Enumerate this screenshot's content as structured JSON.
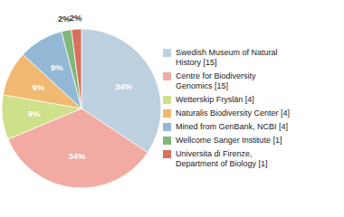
{
  "chart_data": {
    "type": "pie",
    "categories": [
      "Swedish Museum of Natural\nHistory [15]",
      "Centre for Biodiversity\nGenomics [15]",
      "Wetterskip Fryslän [4]",
      "Naturalis Biodiversity Center [4]",
      "Mined from GenBank, NCBI [4]",
      "Wellcome Sanger Institute [1]",
      "Universita di Firenze,\nDepartment of Biology [1]"
    ],
    "values": [
      34,
      34,
      9,
      9,
      9,
      2,
      2
    ],
    "value_labels": [
      "34%",
      "34%",
      "9%",
      "9%",
      "9%",
      "2%",
      "2%"
    ],
    "colors": [
      "#bdd0e0",
      "#f2aba3",
      "#cfe08a",
      "#f0b870",
      "#92b8d5",
      "#80b87a",
      "#d87060"
    ],
    "data_labels": true,
    "legend": "right"
  }
}
